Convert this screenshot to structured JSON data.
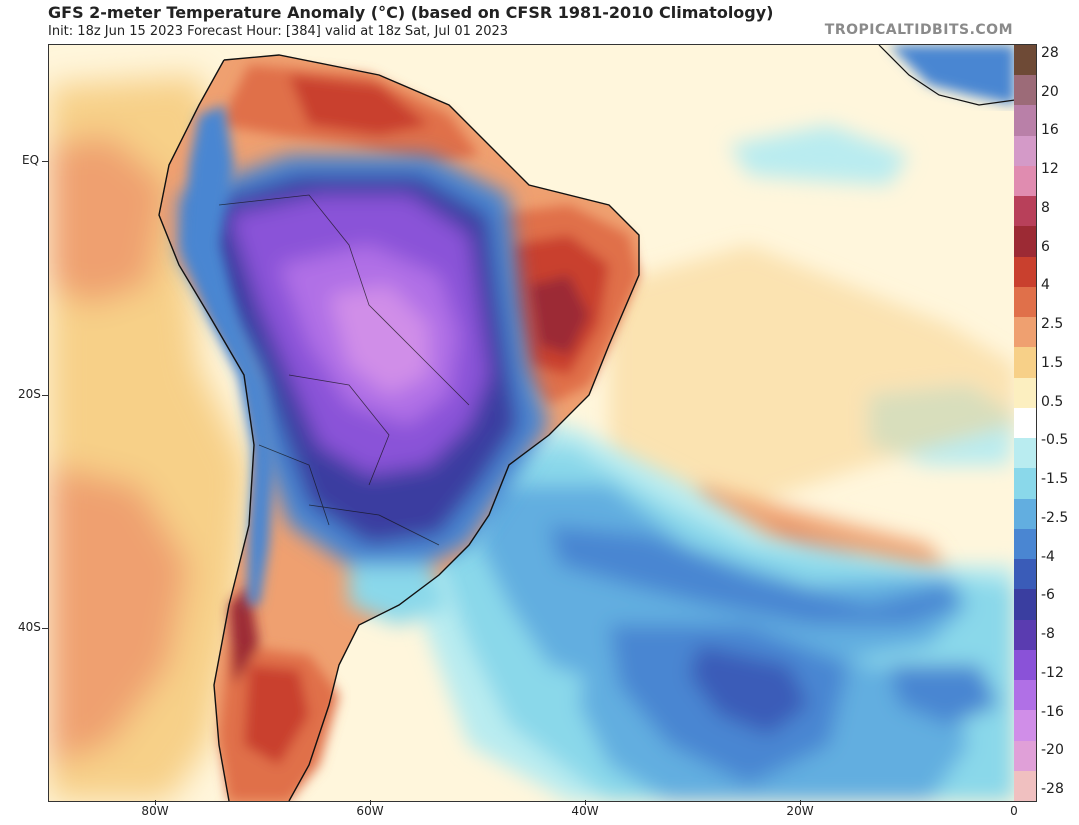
{
  "header": {
    "title": "GFS 2-meter Temperature Anomaly (°C) (based on CFSR 1981-2010 Climatology)",
    "subtitle": "Init: 18z Jun 15 2023   Forecast Hour: [384]   valid at 18z Sat, Jul 01 2023",
    "brand": "TROPICALTIDBITS.COM"
  },
  "axes": {
    "lat_labels": [
      "EQ",
      "20S",
      "40S"
    ],
    "lon_labels": [
      "80W",
      "60W",
      "40W",
      "20W",
      "0"
    ]
  },
  "colorbar": {
    "labels": [
      "28",
      "20",
      "16",
      "12",
      "8",
      "6",
      "4",
      "2.5",
      "1.5",
      "0.5",
      "-0.5",
      "-1.5",
      "-2.5",
      "-4",
      "-6",
      "-8",
      "-12",
      "-16",
      "-20",
      "-28"
    ],
    "colors": [
      "#6e4a36",
      "#9c6b78",
      "#b980a8",
      "#d49ac8",
      "#e08cb0",
      "#b8405a",
      "#9c2a34",
      "#c9402e",
      "#e0704a",
      "#efa070",
      "#f7d088",
      "#fcefc0",
      "#ffffff",
      "#b9ecf0",
      "#8ad8ea",
      "#62aee0",
      "#4a86d2",
      "#3a5cb8",
      "#3a3ea0",
      "#5a3cb0",
      "#8a52d8",
      "#b070e6",
      "#d08ee8",
      "#e0a0d8",
      "#f0c0c0"
    ]
  },
  "map": {
    "colors": {
      "ocean_neutral": "#fff6dc",
      "warm_light": "#f7d088",
      "warm": "#efa070",
      "warm_strong": "#e0704a",
      "hot": "#c9402e",
      "hot_dark": "#9c2a34",
      "cool_light": "#b9ecf0",
      "cool": "#8ad8ea",
      "cold": "#62aee0",
      "cold_mid": "#4a86d2",
      "cold_strong": "#3a5cb8",
      "cold_deep": "#3a3ea0",
      "purple": "#8a52d8",
      "violet": "#b070e6",
      "pink": "#d08ee8",
      "coast": "#111111"
    }
  }
}
